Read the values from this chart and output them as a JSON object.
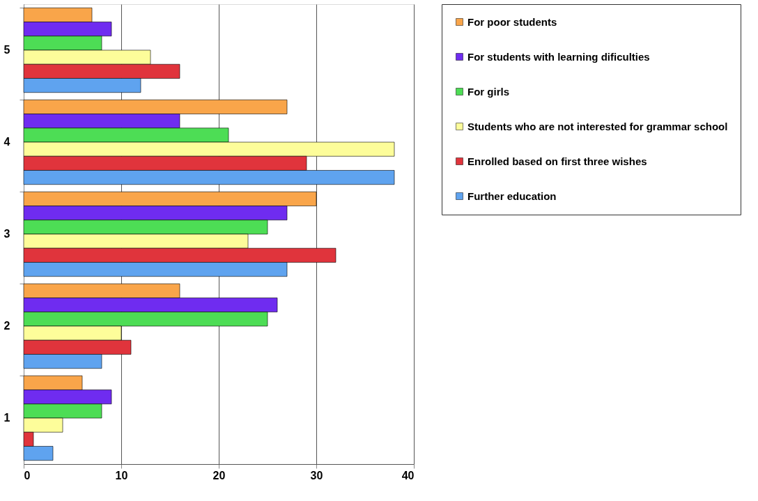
{
  "chart_data": {
    "type": "bar",
    "orientation": "horizontal",
    "categories": [
      "5",
      "4",
      "3",
      "2",
      "1"
    ],
    "series": [
      {
        "name": "For poor students",
        "color": "#f9a54a",
        "values": [
          7,
          27,
          30,
          16,
          6
        ]
      },
      {
        "name": "For  students with learning dificulties",
        "color": "#6f2cf0",
        "values": [
          9,
          16,
          27,
          26,
          9
        ]
      },
      {
        "name": "For girls",
        "color": "#4ddd55",
        "values": [
          8,
          21,
          25,
          25,
          8
        ]
      },
      {
        "name": "Students who are not interested for grammar school",
        "color": "#fdfd9a",
        "values": [
          13,
          38,
          23,
          10,
          4
        ]
      },
      {
        "name": "Enrolled based on first three wishes",
        "color": "#e0343c",
        "values": [
          16,
          29,
          32,
          11,
          1
        ]
      },
      {
        "name": "Further education",
        "color": "#5fa3ef",
        "values": [
          12,
          38,
          27,
          8,
          3
        ]
      }
    ],
    "xlim": [
      0,
      40
    ],
    "xticks": [
      0,
      10,
      20,
      30,
      40
    ],
    "grid": "x",
    "legend": "right"
  }
}
